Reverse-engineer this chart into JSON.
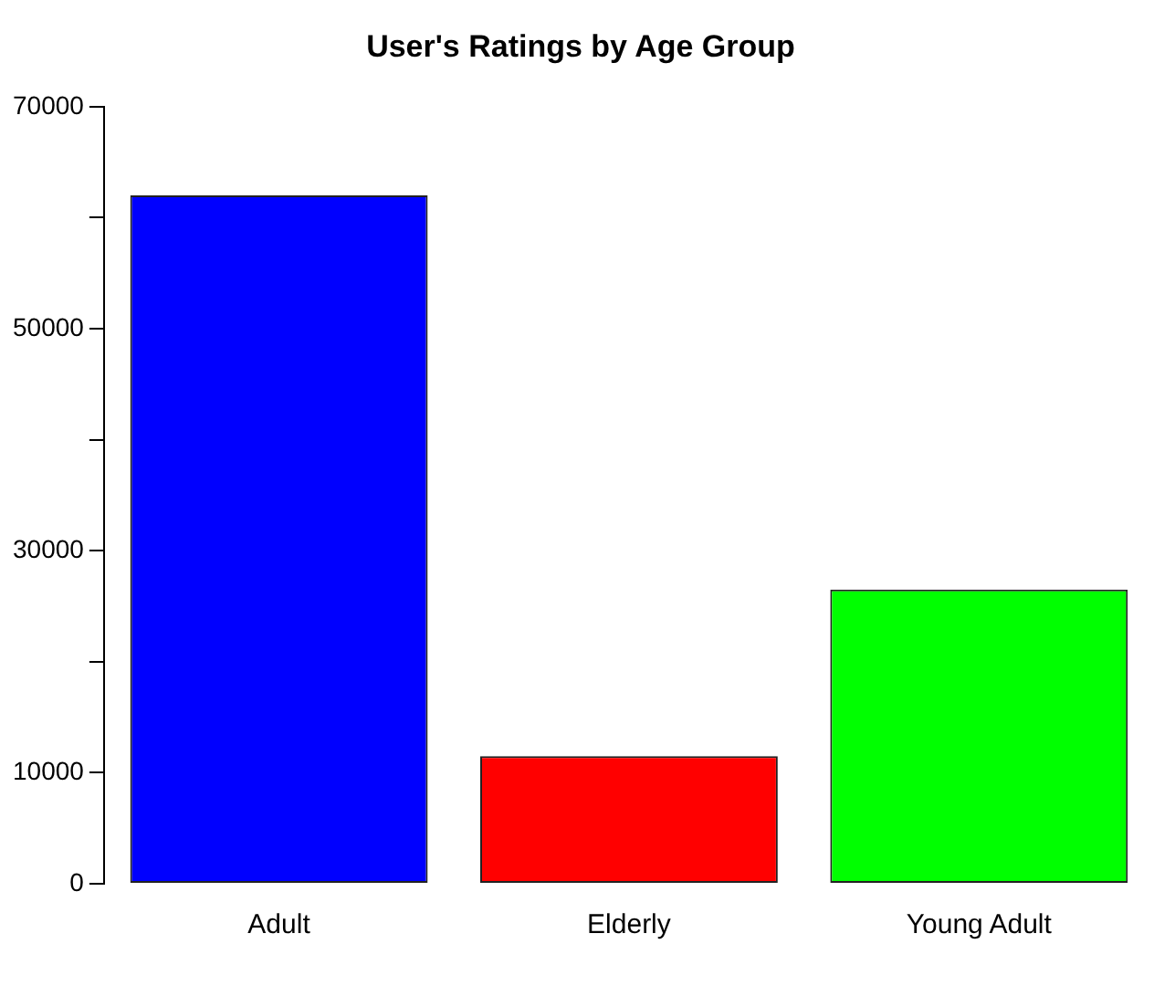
{
  "chart_data": {
    "type": "bar",
    "title": "User's Ratings by Age Group",
    "categories": [
      "Adult",
      "Elderly",
      "Young Adult"
    ],
    "values": [
      62000,
      11500,
      26500
    ],
    "colors": [
      "#0000ff",
      "#ff0000",
      "#00ff00"
    ],
    "ylim": [
      0,
      70000
    ],
    "yticks": [
      0,
      10000,
      {
        "value": 20000,
        "label": null
      },
      30000,
      {
        "value": 40000,
        "label": null
      },
      50000,
      {
        "value": 60000,
        "label": null
      },
      70000
    ],
    "grid": false
  }
}
